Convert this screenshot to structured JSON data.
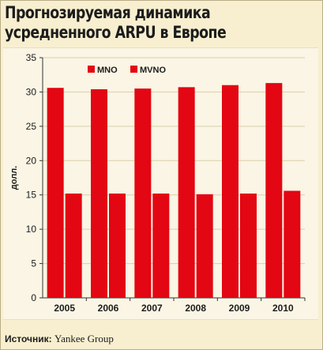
{
  "title_line1": "Прогнозируемая динамика",
  "title_line2": "усредненного ARPU в Европе",
  "source_label": "Источник:",
  "source_value": "Yankee Group",
  "chart_data": {
    "type": "bar",
    "categories": [
      "2005",
      "2006",
      "2007",
      "2008",
      "2009",
      "2010"
    ],
    "series": [
      {
        "name": "MNO",
        "values": [
          30.6,
          30.4,
          30.5,
          30.7,
          31.0,
          31.3
        ]
      },
      {
        "name": "MVNO",
        "values": [
          15.2,
          15.2,
          15.2,
          15.1,
          15.2,
          15.6
        ]
      }
    ],
    "ylabel": "долл.",
    "ylim": [
      0,
      35
    ],
    "yticks": [
      0,
      5,
      10,
      15,
      20,
      25,
      30,
      35
    ],
    "grid": true,
    "legend_position": "top-left",
    "colors": {
      "MNO": "#e30613",
      "MVNO": "#e30613",
      "grid": "#d9cfad",
      "axis": "#333333"
    }
  }
}
